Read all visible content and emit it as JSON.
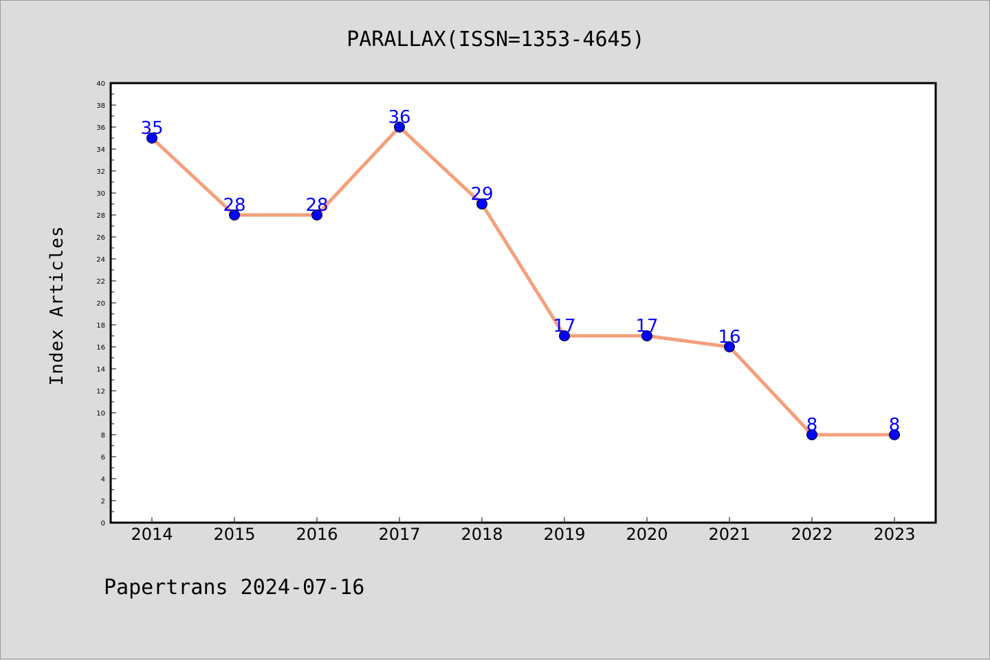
{
  "chart_data": {
    "type": "line",
    "title": "PARALLAX(ISSN=1353-4645)",
    "ylabel": "Index Articles",
    "xlabel": "",
    "categories": [
      "2014",
      "2015",
      "2016",
      "2017",
      "2018",
      "2019",
      "2020",
      "2021",
      "2022",
      "2023"
    ],
    "values": [
      35,
      28,
      28,
      36,
      29,
      17,
      17,
      16,
      8,
      8
    ],
    "ylim": [
      0,
      40
    ],
    "y_ticks": [
      "0",
      "2",
      "4",
      "6",
      "8",
      "10",
      "12",
      "14",
      "16",
      "18",
      "20",
      "22",
      "24",
      "26",
      "28",
      "30",
      "32",
      "34",
      "36",
      "38",
      "40"
    ],
    "grid": false,
    "data_labels": true,
    "line_color": "#f4a07c",
    "marker_color": "#0000ff",
    "label_color": "#0000ff",
    "footer": "Papertrans 2024-07-16"
  }
}
